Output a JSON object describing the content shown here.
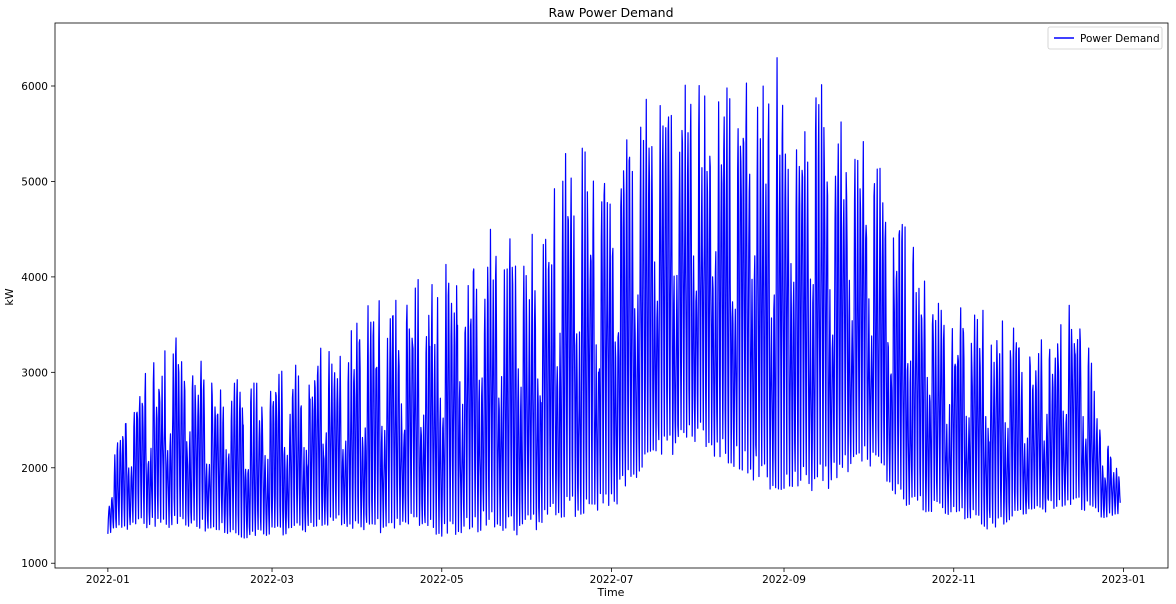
{
  "chart_data": {
    "type": "line",
    "title": "Raw Power Demand",
    "xlabel": "Time",
    "ylabel": "kW",
    "xlim": [
      "2021-12-13",
      "2023-01-17"
    ],
    "ylim": [
      950,
      6660
    ],
    "x_ticks": [
      "2022-01",
      "2022-03",
      "2022-05",
      "2022-07",
      "2022-09",
      "2022-11",
      "2023-01"
    ],
    "y_ticks": [
      1000,
      2000,
      3000,
      4000,
      5000,
      6000
    ],
    "grid": false,
    "legend_position": "top-right",
    "colors": {
      "series": "#0000ff"
    },
    "series": [
      {
        "name": "Power Demand",
        "x_start": "2022-01-01",
        "x_end": "2022-12-31",
        "envelope": [
          [
            "2022-01-01",
            1300,
            1950
          ],
          [
            "2022-01-10",
            1350,
            2900
          ],
          [
            "2022-01-25",
            1350,
            3400
          ],
          [
            "2022-02-10",
            1300,
            3000
          ],
          [
            "2022-02-20",
            1200,
            2900
          ],
          [
            "2022-03-10",
            1300,
            3100
          ],
          [
            "2022-03-25",
            1350,
            3400
          ],
          [
            "2022-04-05",
            1250,
            3750
          ],
          [
            "2022-04-20",
            1350,
            3950
          ],
          [
            "2022-05-01",
            1200,
            4100
          ],
          [
            "2022-05-15",
            1300,
            4600
          ],
          [
            "2022-06-01",
            1250,
            4500
          ],
          [
            "2022-06-15",
            1400,
            5400
          ],
          [
            "2022-07-01",
            1500,
            5300
          ],
          [
            "2022-07-15",
            2000,
            6050
          ],
          [
            "2022-08-01",
            2200,
            6050
          ],
          [
            "2022-08-15",
            1900,
            6100
          ],
          [
            "2022-09-01",
            1600,
            6450
          ],
          [
            "2022-09-15",
            1700,
            6050
          ],
          [
            "2022-10-01",
            2000,
            5450
          ],
          [
            "2022-10-15",
            1500,
            4600
          ],
          [
            "2022-11-01",
            1450,
            3750
          ],
          [
            "2022-11-15",
            1300,
            3700
          ],
          [
            "2022-12-01",
            1500,
            3300
          ],
          [
            "2022-12-15",
            1550,
            3900
          ],
          [
            "2022-12-25",
            1450,
            2500
          ],
          [
            "2022-12-31",
            1500,
            1900
          ]
        ]
      }
    ]
  }
}
